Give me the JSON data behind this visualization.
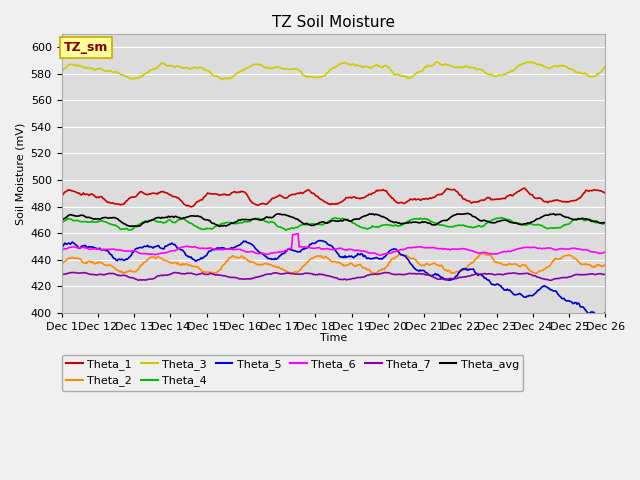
{
  "title": "TZ Soil Moisture",
  "ylabel": "Soil Moisture (mV)",
  "xlabel": "Time",
  "ylim": [
    400,
    610
  ],
  "yticks": [
    400,
    420,
    440,
    460,
    480,
    500,
    520,
    540,
    560,
    580,
    600
  ],
  "fig_bg": "#f0f0f0",
  "plot_bg": "#dcdcdc",
  "legend_label": "TZ_sm",
  "legend_box_facecolor": "#ffff99",
  "legend_box_edgecolor": "#ccaa00",
  "n_points": 500,
  "series_order": [
    "Theta_1",
    "Theta_2",
    "Theta_3",
    "Theta_4",
    "Theta_5",
    "Theta_6",
    "Theta_7",
    "Theta_avg"
  ],
  "series": {
    "Theta_1": {
      "color": "#cc0000",
      "base": 487,
      "amplitude": 4,
      "freq1": 3.1,
      "freq2": 6.5,
      "trend": 0.0
    },
    "Theta_2": {
      "color": "#ff8800",
      "base": 436,
      "amplitude": 5,
      "freq1": 2.8,
      "freq2": 5.5,
      "trend": 0.2
    },
    "Theta_3": {
      "color": "#cccc00",
      "base": 582,
      "amplitude": 4,
      "freq1": 2.5,
      "freq2": 5.0,
      "trend": 0.3
    },
    "Theta_4": {
      "color": "#00bb00",
      "base": 467,
      "amplitude": 3,
      "freq1": 2.7,
      "freq2": 5.8,
      "trend": 0.0
    },
    "Theta_5": {
      "color": "#0000cc",
      "base": 447,
      "amplitude": 5,
      "freq1": 2.9,
      "freq2": 6.2,
      "trend": -3.0
    },
    "Theta_6": {
      "color": "#ff00ff",
      "base": 447,
      "amplitude": 2,
      "freq1": 2.0,
      "freq2": 4.0,
      "trend": 0.1
    },
    "Theta_7": {
      "color": "#8800aa",
      "base": 428,
      "amplitude": 2,
      "freq1": 2.2,
      "freq2": 4.5,
      "trend": 0.05
    },
    "Theta_avg": {
      "color": "#000000",
      "base": 470,
      "amplitude": 3,
      "freq1": 2.4,
      "freq2": 5.2,
      "trend": 0.0
    }
  },
  "xtick_labels": [
    "Dec 1",
    "Dec 12",
    "Dec 13",
    "Dec 14",
    "Dec 15",
    "Dec 16",
    "Dec 17",
    "Dec 18",
    "Dec 19",
    "Dec 20",
    "Dec 21",
    "Dec 22",
    "Dec 23",
    "Dec 24",
    "Dec 25",
    "Dec 26"
  ],
  "title_fontsize": 11,
  "axis_fontsize": 8,
  "tick_fontsize": 8,
  "legend_fontsize": 8
}
